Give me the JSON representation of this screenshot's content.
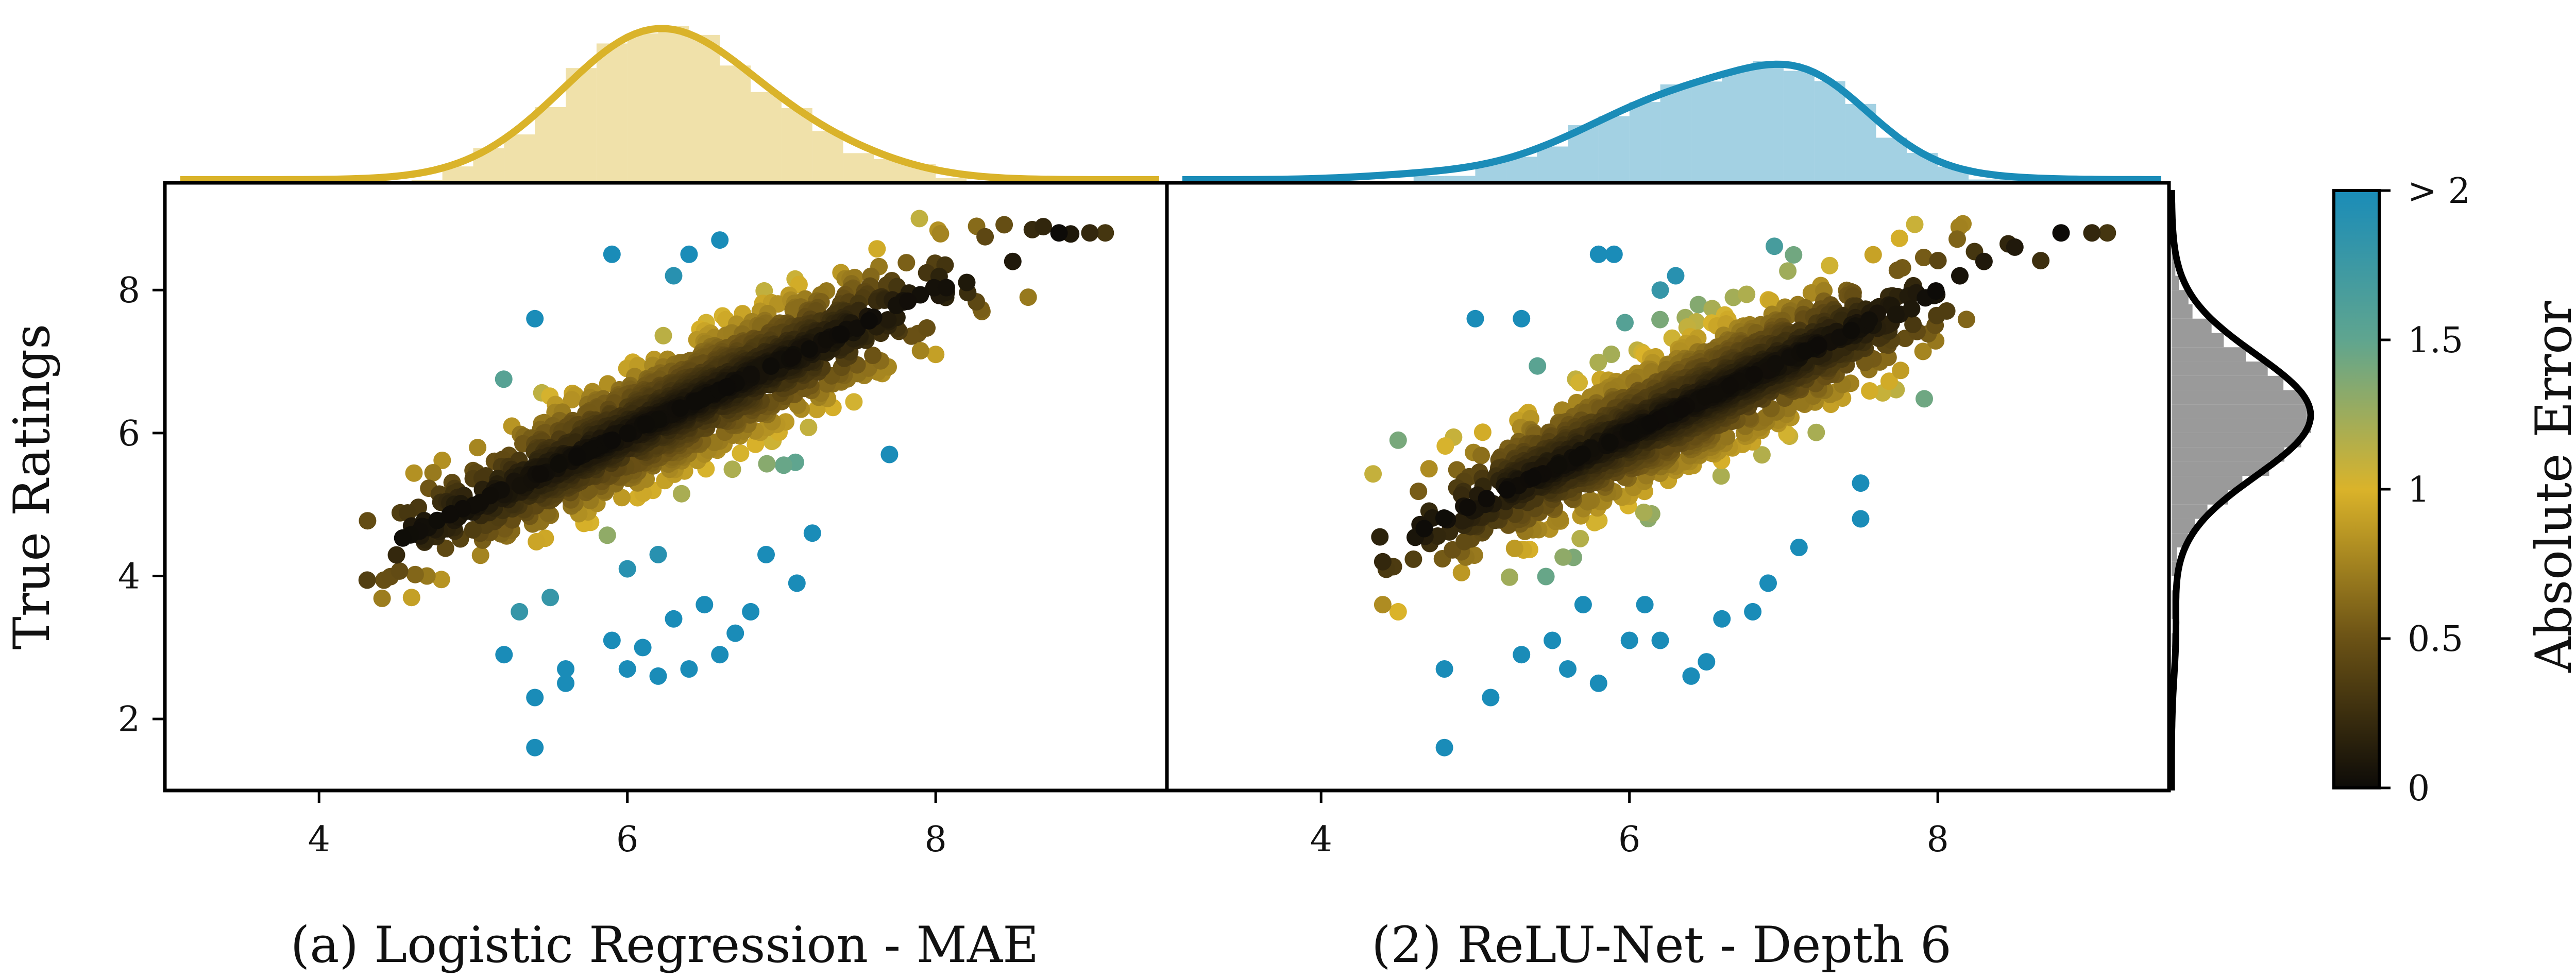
{
  "chart_data": [
    {
      "type": "scatter",
      "subtitle": "(a) Logistic Regression - MAE",
      "ylabel": "True Ratings",
      "xlabel": "",
      "xlim": [
        3.0,
        9.5
      ],
      "ylim": [
        1.0,
        9.5
      ],
      "xticks": [
        "4",
        "6",
        "8"
      ],
      "yticks": [
        "2",
        "4",
        "6",
        "8"
      ],
      "color_encoding": "absolute error |x - y|",
      "marginal_x": {
        "type": "histogram+kde",
        "color": "#DAB32A",
        "peak_x": 6.2
      },
      "outliers": [
        {
          "x": 5.4,
          "y": 1.6
        },
        {
          "x": 5.4,
          "y": 2.3
        },
        {
          "x": 5.2,
          "y": 2.9
        },
        {
          "x": 5.6,
          "y": 2.5
        },
        {
          "x": 5.6,
          "y": 2.7
        },
        {
          "x": 6.0,
          "y": 2.7
        },
        {
          "x": 6.2,
          "y": 2.6
        },
        {
          "x": 6.4,
          "y": 2.7
        },
        {
          "x": 6.6,
          "y": 2.9
        },
        {
          "x": 5.9,
          "y": 3.1
        },
        {
          "x": 6.1,
          "y": 3.0
        },
        {
          "x": 6.3,
          "y": 3.4
        },
        {
          "x": 6.7,
          "y": 3.2
        },
        {
          "x": 6.8,
          "y": 3.5
        },
        {
          "x": 7.1,
          "y": 3.9
        },
        {
          "x": 5.3,
          "y": 3.5
        },
        {
          "x": 5.5,
          "y": 3.7
        },
        {
          "x": 6.5,
          "y": 3.6
        },
        {
          "x": 6.0,
          "y": 4.1
        },
        {
          "x": 6.2,
          "y": 4.3
        },
        {
          "x": 6.9,
          "y": 4.3
        },
        {
          "x": 7.2,
          "y": 4.6
        },
        {
          "x": 7.7,
          "y": 5.7
        },
        {
          "x": 5.4,
          "y": 7.6
        },
        {
          "x": 5.9,
          "y": 8.5
        },
        {
          "x": 6.4,
          "y": 8.5
        },
        {
          "x": 6.6,
          "y": 8.7
        },
        {
          "x": 6.3,
          "y": 8.2
        },
        {
          "x": 8.5,
          "y": 8.4
        },
        {
          "x": 8.8,
          "y": 8.8
        },
        {
          "x": 9.0,
          "y": 8.8
        },
        {
          "x": 9.1,
          "y": 8.8
        },
        {
          "x": 8.6,
          "y": 7.9
        },
        {
          "x": 8.3,
          "y": 7.7
        },
        {
          "x": 8.0,
          "y": 7.1
        },
        {
          "x": 4.6,
          "y": 3.7
        },
        {
          "x": 4.7,
          "y": 4.0
        },
        {
          "x": 4.6,
          "y": 4.7
        },
        {
          "x": 4.9,
          "y": 5.1
        }
      ]
    },
    {
      "type": "scatter",
      "subtitle": "(2) ReLU-Net - Depth 6",
      "ylabel": "",
      "xlabel": "",
      "xlim": [
        3.0,
        9.5
      ],
      "ylim": [
        1.0,
        9.5
      ],
      "xticks": [
        "4",
        "6",
        "8"
      ],
      "yticks": [],
      "color_encoding": "absolute error |x - y|",
      "marginal_x": {
        "type": "histogram+kde",
        "color": "#1A8CB8",
        "peak_x": 6.5
      },
      "marginal_y": {
        "type": "histogram+kde",
        "color": "#9A9A9A",
        "peak_y": 6.2
      },
      "outliers": [
        {
          "x": 4.8,
          "y": 1.6
        },
        {
          "x": 5.1,
          "y": 2.3
        },
        {
          "x": 4.8,
          "y": 2.7
        },
        {
          "x": 5.3,
          "y": 2.9
        },
        {
          "x": 5.5,
          "y": 3.1
        },
        {
          "x": 5.6,
          "y": 2.7
        },
        {
          "x": 5.8,
          "y": 2.5
        },
        {
          "x": 6.0,
          "y": 3.1
        },
        {
          "x": 6.2,
          "y": 3.1
        },
        {
          "x": 6.4,
          "y": 2.6
        },
        {
          "x": 6.5,
          "y": 2.8
        },
        {
          "x": 6.6,
          "y": 3.4
        },
        {
          "x": 6.8,
          "y": 3.5
        },
        {
          "x": 6.9,
          "y": 3.9
        },
        {
          "x": 6.1,
          "y": 3.6
        },
        {
          "x": 5.7,
          "y": 3.6
        },
        {
          "x": 7.1,
          "y": 4.4
        },
        {
          "x": 7.5,
          "y": 5.3
        },
        {
          "x": 7.5,
          "y": 4.8
        },
        {
          "x": 5.0,
          "y": 7.6
        },
        {
          "x": 5.3,
          "y": 7.6
        },
        {
          "x": 5.8,
          "y": 8.5
        },
        {
          "x": 5.9,
          "y": 8.5
        },
        {
          "x": 6.3,
          "y": 8.2
        },
        {
          "x": 6.2,
          "y": 8.0
        },
        {
          "x": 8.5,
          "y": 8.6
        },
        {
          "x": 8.8,
          "y": 8.8
        },
        {
          "x": 9.0,
          "y": 8.8
        },
        {
          "x": 9.1,
          "y": 8.8
        },
        {
          "x": 8.3,
          "y": 8.4
        },
        {
          "x": 4.4,
          "y": 3.6
        },
        {
          "x": 4.5,
          "y": 3.5
        },
        {
          "x": 4.4,
          "y": 4.2
        },
        {
          "x": 4.5,
          "y": 5.9
        },
        {
          "x": 4.7,
          "y": 5.5
        },
        {
          "x": 7.7,
          "y": 7.3
        }
      ]
    }
  ],
  "colorbar": {
    "label": "Absolute Error",
    "ticks": [
      "0",
      "0.5",
      "1",
      "1.5",
      "> 2"
    ],
    "stops": [
      "#0d0b08",
      "#6b5215",
      "#DAB32A",
      "#5fa58f",
      "#1A8CB8"
    ]
  }
}
